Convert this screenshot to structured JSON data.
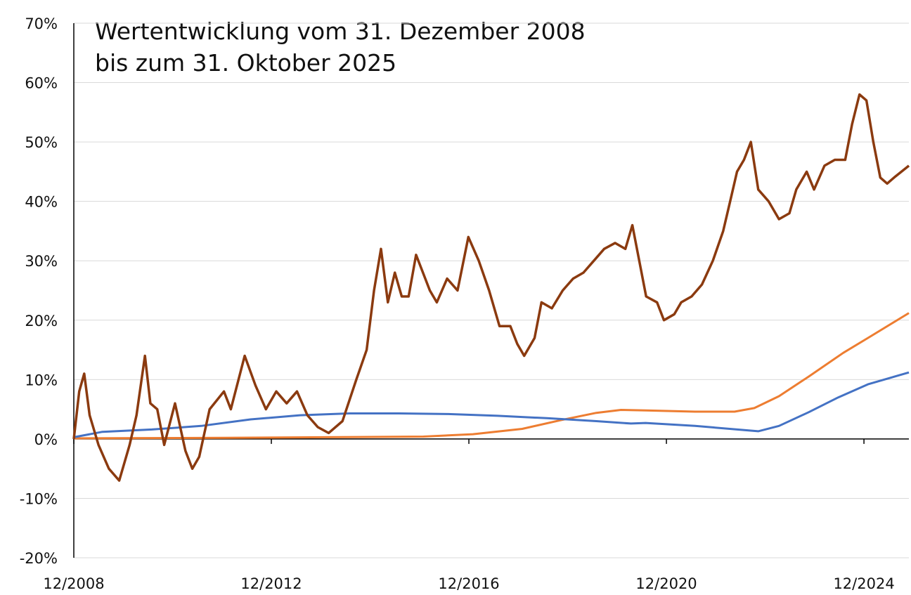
{
  "chart_data": {
    "type": "line",
    "title": [
      "Wertentwicklung vom 31. Dezember 2008",
      "bis zum 31. Oktober 2025"
    ],
    "xlim": [
      2008.92,
      2025.83
    ],
    "xticks": [
      {
        "value": 2008.92,
        "label": "12/2008"
      },
      {
        "value": 2012.92,
        "label": "12/2012"
      },
      {
        "value": 2016.92,
        "label": "12/2016"
      },
      {
        "value": 2020.92,
        "label": "12/2020"
      },
      {
        "value": 2024.92,
        "label": "12/2024"
      }
    ],
    "ylim": [
      -20,
      70
    ],
    "yticks": [
      {
        "value": -20,
        "label": "-20%"
      },
      {
        "value": -10,
        "label": "-10%"
      },
      {
        "value": 0,
        "label": "0%"
      },
      {
        "value": 10,
        "label": "10%"
      },
      {
        "value": 20,
        "label": "20%"
      },
      {
        "value": 30,
        "label": "30%"
      },
      {
        "value": 40,
        "label": "40%"
      },
      {
        "value": 50,
        "label": "50%"
      },
      {
        "value": 60,
        "label": "60%"
      },
      {
        "value": 70,
        "label": "70%"
      }
    ],
    "grid": true,
    "series": [
      {
        "color": "#ED7D31",
        "x": [
          2008.92,
          2012,
          2014,
          2016,
          2017,
          2018,
          2018.8,
          2019.5,
          2020.0,
          2020.5,
          2021.5,
          2022.3,
          2022.7,
          2023.2,
          2023.8,
          2024.5,
          2025.0,
          2025.83
        ],
        "values": [
          0.1,
          0.2,
          0.3,
          0.4,
          0.8,
          1.7,
          3.2,
          4.4,
          4.9,
          4.8,
          4.6,
          4.6,
          5.2,
          7.2,
          10.5,
          14.5,
          17.0,
          21.2
        ]
      },
      {
        "color": "#4472C4",
        "x": [
          2008.92,
          2009.5,
          2010.5,
          2011.5,
          2012.5,
          2013.5,
          2014.5,
          2015.5,
          2016.5,
          2017.5,
          2018.5,
          2019.5,
          2020.2,
          2020.5,
          2021.5,
          2022.5,
          2022.78,
          2023.2,
          2023.8,
          2024.4,
          2025.0,
          2025.83
        ],
        "values": [
          0.3,
          1.2,
          1.6,
          2.2,
          3.3,
          4.0,
          4.3,
          4.3,
          4.2,
          3.9,
          3.5,
          3.0,
          2.6,
          2.7,
          2.2,
          1.5,
          1.3,
          2.2,
          4.5,
          7.0,
          9.2,
          11.2
        ]
      },
      {
        "color": "#8B3A0F",
        "x": [
          2008.92,
          2009.03,
          2009.13,
          2009.24,
          2009.42,
          2009.63,
          2009.84,
          2010.05,
          2010.19,
          2010.36,
          2010.47,
          2010.61,
          2010.75,
          2010.97,
          2011.18,
          2011.32,
          2011.46,
          2011.67,
          2011.96,
          2012.1,
          2012.38,
          2012.6,
          2012.81,
          2013.02,
          2013.23,
          2013.44,
          2013.65,
          2013.86,
          2014.08,
          2014.36,
          2014.64,
          2014.85,
          2015.0,
          2015.14,
          2015.28,
          2015.42,
          2015.56,
          2015.7,
          2015.85,
          2015.99,
          2016.13,
          2016.27,
          2016.48,
          2016.69,
          2016.91,
          2017.12,
          2017.33,
          2017.54,
          2017.76,
          2017.9,
          2018.04,
          2018.25,
          2018.39,
          2018.6,
          2018.82,
          2019.03,
          2019.24,
          2019.45,
          2019.66,
          2019.88,
          2020.09,
          2020.23,
          2020.37,
          2020.51,
          2020.73,
          2020.87,
          2021.08,
          2021.22,
          2021.43,
          2021.64,
          2021.86,
          2022.07,
          2022.21,
          2022.35,
          2022.49,
          2022.63,
          2022.78,
          2022.99,
          2023.2,
          2023.41,
          2023.55,
          2023.76,
          2023.91,
          2024.12,
          2024.33,
          2024.54,
          2024.68,
          2024.83,
          2024.97,
          2025.11,
          2025.25,
          2025.39,
          2025.53,
          2025.83
        ],
        "values": [
          0,
          8,
          11,
          4,
          -1,
          -5,
          -7,
          -1,
          4,
          14,
          6,
          5,
          -1,
          6,
          -2,
          -5,
          -3,
          5,
          8,
          5,
          14,
          9,
          5,
          8,
          6,
          8,
          4,
          2,
          1,
          3,
          10,
          15,
          25,
          32,
          23,
          28,
          24,
          24,
          31,
          28,
          25,
          23,
          27,
          25,
          34,
          30,
          25,
          19,
          19,
          16,
          14,
          17,
          23,
          22,
          25,
          27,
          28,
          30,
          32,
          33,
          32,
          36,
          30,
          24,
          23,
          20,
          21,
          23,
          24,
          26,
          30,
          35,
          40,
          45,
          47,
          50,
          42,
          40,
          37,
          38,
          42,
          45,
          42,
          46,
          47,
          47,
          53,
          58,
          57,
          50,
          44,
          43,
          44,
          46
        ]
      }
    ]
  }
}
